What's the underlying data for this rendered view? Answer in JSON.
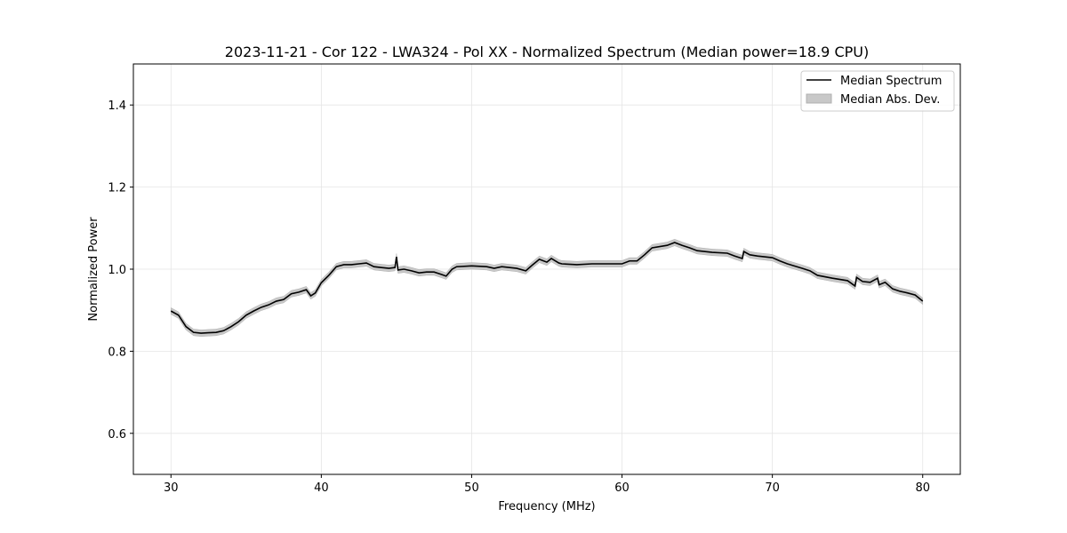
{
  "chart_data": {
    "type": "line",
    "title": "2023-11-21 - Cor 122 - LWA324 - Pol XX - Normalized Spectrum (Median power=18.9 CPU)",
    "xlabel": "Frequency (MHz)",
    "ylabel": "Normalized Power",
    "xlim": [
      27.5,
      82.5
    ],
    "ylim": [
      0.5,
      1.5
    ],
    "xticks": [
      30,
      40,
      50,
      60,
      70,
      80
    ],
    "yticks": [
      0.6,
      0.8,
      1.0,
      1.2,
      1.4
    ],
    "grid": true,
    "legend_position": "top-right",
    "legend": [
      "Median Spectrum",
      "Median Abs. Dev."
    ],
    "colors": {
      "line": "#000000",
      "band": "#c8c8c8"
    },
    "series": [
      {
        "name": "Median Spectrum",
        "mad": 0.008,
        "x": [
          30,
          30.5,
          31,
          31.5,
          32,
          32.5,
          33,
          33.5,
          34,
          34.5,
          35,
          35.5,
          36,
          36.5,
          37,
          37.5,
          38,
          38.5,
          39,
          39.3,
          39.6,
          40,
          40.5,
          41,
          41.5,
          42,
          42.5,
          43,
          43.5,
          44,
          44.5,
          44.9,
          45.0,
          45.1,
          45.5,
          46,
          46.5,
          47,
          47.5,
          48,
          48.3,
          48.7,
          49,
          50,
          51,
          51.5,
          52,
          53,
          53.6,
          54,
          54.5,
          55,
          55.3,
          55.8,
          56,
          57,
          58,
          59,
          60,
          60.5,
          61,
          61.5,
          62,
          63,
          63.5,
          64,
          64.5,
          65,
          66,
          67,
          67.5,
          68,
          68.1,
          68.5,
          69,
          70,
          70.5,
          71,
          72,
          72.5,
          73,
          74,
          75,
          75.5,
          75.6,
          76,
          76.5,
          77,
          77.1,
          77.5,
          78,
          78.5,
          79,
          79.5,
          80
        ],
        "y": [
          0.898,
          0.888,
          0.86,
          0.846,
          0.844,
          0.845,
          0.846,
          0.85,
          0.86,
          0.872,
          0.888,
          0.898,
          0.907,
          0.913,
          0.922,
          0.926,
          0.94,
          0.944,
          0.95,
          0.935,
          0.942,
          0.967,
          0.985,
          1.006,
          1.011,
          1.011,
          1.013,
          1.015,
          1.006,
          1.004,
          1.002,
          1.004,
          1.03,
          0.998,
          1.0,
          0.996,
          0.991,
          0.993,
          0.993,
          0.987,
          0.983,
          1.0,
          1.006,
          1.008,
          1.006,
          1.002,
          1.006,
          1.002,
          0.996,
          1.009,
          1.024,
          1.017,
          1.026,
          1.015,
          1.013,
          1.011,
          1.013,
          1.013,
          1.013,
          1.02,
          1.02,
          1.035,
          1.052,
          1.058,
          1.065,
          1.058,
          1.052,
          1.045,
          1.041,
          1.039,
          1.032,
          1.026,
          1.043,
          1.035,
          1.032,
          1.028,
          1.02,
          1.013,
          1.002,
          0.996,
          0.985,
          0.978,
          0.972,
          0.959,
          0.98,
          0.97,
          0.968,
          0.978,
          0.962,
          0.968,
          0.952,
          0.946,
          0.942,
          0.937,
          0.922
        ]
      }
    ]
  }
}
